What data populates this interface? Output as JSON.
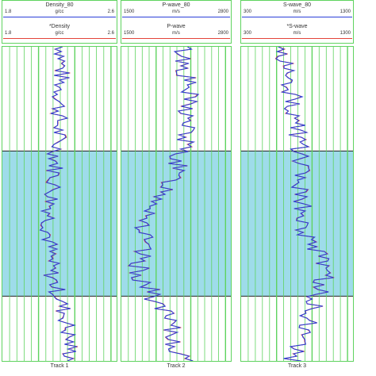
{
  "tracks": [
    {
      "label": "Track 1",
      "header": [
        {
          "name": "Density_80",
          "unit": "g/cc",
          "min": "1.8",
          "max": "2.6",
          "color": "#2b3fd8"
        },
        {
          "name": "*Density",
          "unit": "g/cc",
          "min": "1.8",
          "max": "2.6",
          "color": "#e3443a"
        }
      ]
    },
    {
      "label": "Track 2",
      "header": [
        {
          "name": "P-wave_80",
          "unit": "m/s",
          "min": "1500",
          "max": "2800",
          "color": "#2b3fd8"
        },
        {
          "name": "P-wave",
          "unit": "m/s",
          "min": "1500",
          "max": "2800",
          "color": "#e3443a"
        }
      ]
    },
    {
      "label": "Track 3",
      "header": [
        {
          "name": "S-wave_80",
          "unit": "m/s",
          "min": "300",
          "max": "1300",
          "color": "#2b3fd8"
        },
        {
          "name": "*S-wave",
          "unit": "m/s",
          "min": "300",
          "max": "1300",
          "color": "#e3443a"
        }
      ]
    }
  ],
  "colors": {
    "grid": "#5fd35f",
    "zone_fill": "#9edcea",
    "curve_primary": "#2b3fd8",
    "curve_secondary": "#e3443a"
  },
  "zone_depth_fraction": [
    0.33,
    0.79
  ]
}
